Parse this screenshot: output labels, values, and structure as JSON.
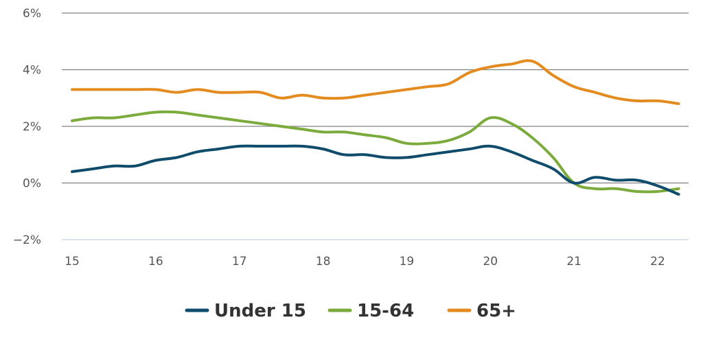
{
  "chart_data": {
    "type": "line",
    "x_ticks": [
      "15",
      "16",
      "17",
      "18",
      "19",
      "20",
      "21",
      "22"
    ],
    "y_ticks": [
      "6%",
      "4%",
      "2%",
      "0%",
      "−2%"
    ],
    "y_tick_values": [
      6,
      4,
      2,
      0,
      -2
    ],
    "x_tick_values": [
      15,
      16,
      17,
      18,
      19,
      20,
      21,
      22
    ],
    "xlim": [
      15,
      22.25
    ],
    "ylim": [
      -2,
      6
    ],
    "grid": true,
    "legend_position": "bottom",
    "series": [
      {
        "name": "Under 15",
        "color": "#0f4c6b",
        "points": [
          [
            15.0,
            0.4
          ],
          [
            15.25,
            0.5
          ],
          [
            15.5,
            0.6
          ],
          [
            15.75,
            0.6
          ],
          [
            16.0,
            0.8
          ],
          [
            16.25,
            0.9
          ],
          [
            16.5,
            1.1
          ],
          [
            16.75,
            1.2
          ],
          [
            17.0,
            1.3
          ],
          [
            17.25,
            1.3
          ],
          [
            17.5,
            1.3
          ],
          [
            17.75,
            1.3
          ],
          [
            18.0,
            1.2
          ],
          [
            18.25,
            1.0
          ],
          [
            18.5,
            1.0
          ],
          [
            18.75,
            0.9
          ],
          [
            19.0,
            0.9
          ],
          [
            19.25,
            1.0
          ],
          [
            19.5,
            1.1
          ],
          [
            19.75,
            1.2
          ],
          [
            20.0,
            1.3
          ],
          [
            20.25,
            1.1
          ],
          [
            20.5,
            0.8
          ],
          [
            20.75,
            0.5
          ],
          [
            21.0,
            0.0
          ],
          [
            21.25,
            0.2
          ],
          [
            21.5,
            0.1
          ],
          [
            21.75,
            0.1
          ],
          [
            22.0,
            -0.1
          ],
          [
            22.25,
            -0.4
          ]
        ]
      },
      {
        "name": "15-64",
        "color": "#7aab3c",
        "points": [
          [
            15.0,
            2.2
          ],
          [
            15.25,
            2.3
          ],
          [
            15.5,
            2.3
          ],
          [
            15.75,
            2.4
          ],
          [
            16.0,
            2.5
          ],
          [
            16.25,
            2.5
          ],
          [
            16.5,
            2.4
          ],
          [
            16.75,
            2.3
          ],
          [
            17.0,
            2.2
          ],
          [
            17.25,
            2.1
          ],
          [
            17.5,
            2.0
          ],
          [
            17.75,
            1.9
          ],
          [
            18.0,
            1.8
          ],
          [
            18.25,
            1.8
          ],
          [
            18.5,
            1.7
          ],
          [
            18.75,
            1.6
          ],
          [
            19.0,
            1.4
          ],
          [
            19.25,
            1.4
          ],
          [
            19.5,
            1.5
          ],
          [
            19.75,
            1.8
          ],
          [
            20.0,
            2.3
          ],
          [
            20.25,
            2.1
          ],
          [
            20.5,
            1.6
          ],
          [
            20.75,
            0.9
          ],
          [
            21.0,
            0.0
          ],
          [
            21.25,
            -0.2
          ],
          [
            21.5,
            -0.2
          ],
          [
            21.75,
            -0.3
          ],
          [
            22.0,
            -0.3
          ],
          [
            22.25,
            -0.2
          ]
        ]
      },
      {
        "name": "65+",
        "color": "#e38b1f",
        "points": [
          [
            15.0,
            3.3
          ],
          [
            15.25,
            3.3
          ],
          [
            15.5,
            3.3
          ],
          [
            15.75,
            3.3
          ],
          [
            16.0,
            3.3
          ],
          [
            16.25,
            3.2
          ],
          [
            16.5,
            3.3
          ],
          [
            16.75,
            3.2
          ],
          [
            17.0,
            3.2
          ],
          [
            17.25,
            3.2
          ],
          [
            17.5,
            3.0
          ],
          [
            17.75,
            3.1
          ],
          [
            18.0,
            3.0
          ],
          [
            18.25,
            3.0
          ],
          [
            18.5,
            3.1
          ],
          [
            18.75,
            3.2
          ],
          [
            19.0,
            3.3
          ],
          [
            19.25,
            3.4
          ],
          [
            19.5,
            3.5
          ],
          [
            19.75,
            3.9
          ],
          [
            20.0,
            4.1
          ],
          [
            20.25,
            4.2
          ],
          [
            20.5,
            4.3
          ],
          [
            20.75,
            3.8
          ],
          [
            21.0,
            3.4
          ],
          [
            21.25,
            3.2
          ],
          [
            21.5,
            3.0
          ],
          [
            21.75,
            2.9
          ],
          [
            22.0,
            2.9
          ],
          [
            22.25,
            2.8
          ]
        ]
      }
    ]
  }
}
